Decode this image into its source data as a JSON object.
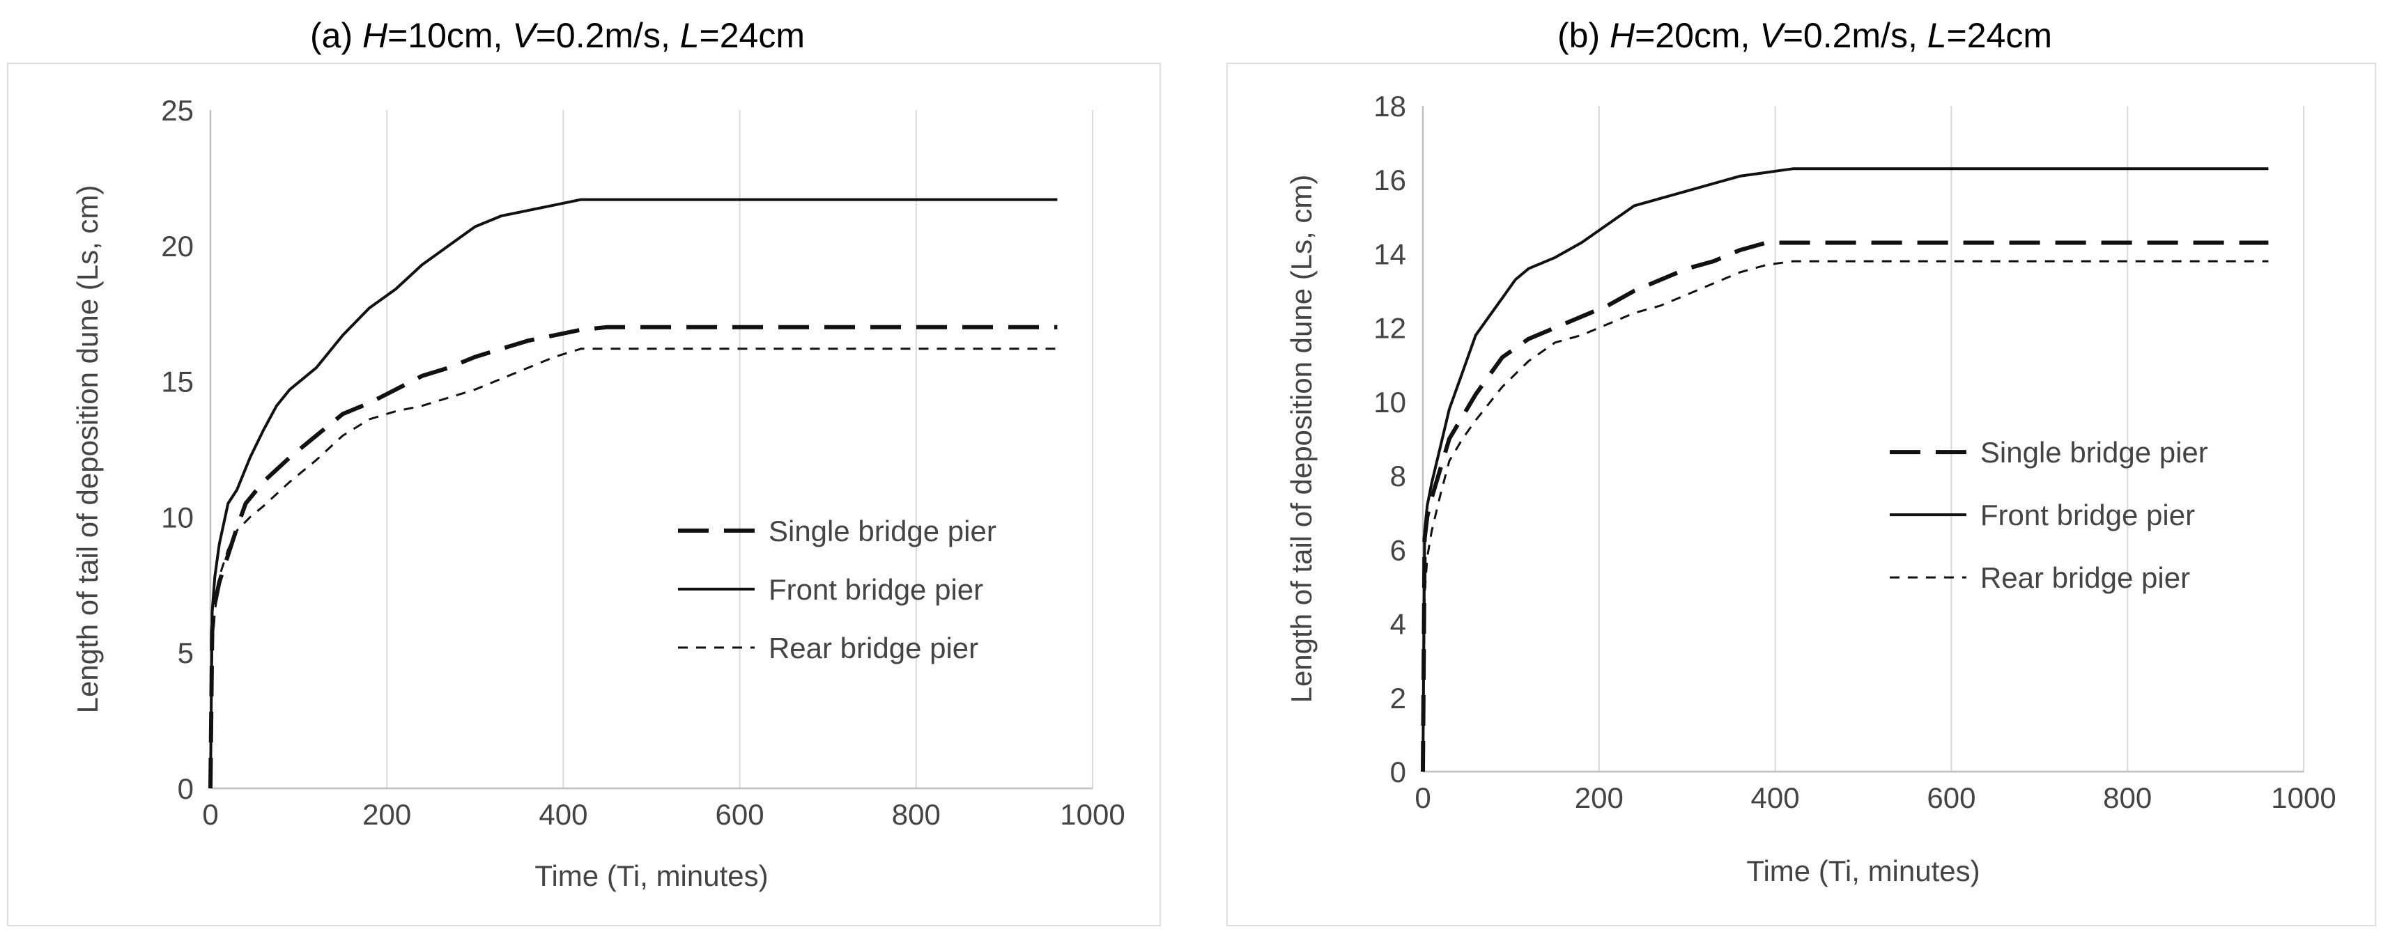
{
  "chart_data": [
    {
      "type": "line",
      "title_parts": {
        "prefix": "(a) ",
        "H_sym": "H",
        "H_val": "=10cm, ",
        "V_sym": "V",
        "V_val": "=0.2m/s, ",
        "L_sym": "L",
        "L_val": "=24cm"
      },
      "xlabel": "Time (Ti,  minutes)",
      "ylabel": "Length of tail of deposition dune (Ls, cm)",
      "xlim": [
        0,
        1000
      ],
      "ylim": [
        0,
        25
      ],
      "xticks": [
        0,
        200,
        400,
        600,
        800,
        1000
      ],
      "yticks": [
        0,
        5,
        10,
        15,
        20,
        25
      ],
      "grid": "vertical",
      "legend_position": "lower-right",
      "series": [
        {
          "name": "Single bridge pier",
          "style": "long-dash",
          "x": [
            0,
            2,
            5,
            10,
            20,
            30,
            40,
            60,
            90,
            120,
            150,
            180,
            210,
            240,
            270,
            300,
            330,
            360,
            390,
            420,
            450,
            600,
            800,
            960
          ],
          "y": [
            0,
            5.8,
            6.8,
            7.6,
            8.6,
            9.6,
            10.5,
            11.3,
            12.2,
            13.0,
            13.8,
            14.2,
            14.7,
            15.2,
            15.5,
            15.9,
            16.2,
            16.5,
            16.7,
            16.9,
            17.0,
            17.0,
            17.0,
            17.0
          ]
        },
        {
          "name": "Front bridge pier",
          "style": "solid",
          "x": [
            0,
            2,
            5,
            10,
            20,
            30,
            45,
            60,
            75,
            90,
            120,
            150,
            180,
            210,
            240,
            270,
            300,
            330,
            360,
            390,
            420,
            600,
            800,
            960
          ],
          "y": [
            0,
            6.5,
            7.8,
            9.0,
            10.5,
            11.0,
            12.2,
            13.2,
            14.1,
            14.7,
            15.5,
            16.7,
            17.7,
            18.4,
            19.3,
            20.0,
            20.7,
            21.1,
            21.3,
            21.5,
            21.7,
            21.7,
            21.7,
            21.7
          ]
        },
        {
          "name": "Rear bridge pier",
          "style": "short-dash",
          "x": [
            0,
            2,
            5,
            10,
            20,
            30,
            45,
            60,
            90,
            120,
            150,
            180,
            210,
            240,
            270,
            300,
            330,
            360,
            390,
            420,
            600,
            800,
            960
          ],
          "y": [
            0,
            5.2,
            6.5,
            7.8,
            8.8,
            9.5,
            10.0,
            10.4,
            11.3,
            12.1,
            13.0,
            13.6,
            13.9,
            14.1,
            14.4,
            14.7,
            15.1,
            15.5,
            15.9,
            16.2,
            16.2,
            16.2,
            16.2
          ]
        }
      ]
    },
    {
      "type": "line",
      "title_parts": {
        "prefix": "(b) ",
        "H_sym": "H",
        "H_val": "=20cm, ",
        "V_sym": "V",
        "V_val": "=0.2m/s, ",
        "L_sym": "L",
        "L_val": "=24cm"
      },
      "xlabel": "Time (Ti, minutes)",
      "ylabel": "Length of tail of deposition dune (Ls, cm)",
      "xlim": [
        0,
        1000
      ],
      "ylim": [
        0,
        18
      ],
      "xticks": [
        0,
        200,
        400,
        600,
        800,
        1000
      ],
      "yticks": [
        0,
        2,
        4,
        6,
        8,
        10,
        12,
        14,
        16,
        18
      ],
      "grid": "vertical",
      "legend_position": "lower-right",
      "series": [
        {
          "name": "Single bridge pier",
          "style": "long-dash",
          "x": [
            0,
            2,
            5,
            10,
            20,
            30,
            45,
            60,
            90,
            120,
            150,
            180,
            210,
            240,
            270,
            300,
            330,
            360,
            390,
            420,
            600,
            800,
            960
          ],
          "y": [
            0,
            6.3,
            6.9,
            7.4,
            8.2,
            9.0,
            9.6,
            10.2,
            11.2,
            11.7,
            12.0,
            12.3,
            12.6,
            13.0,
            13.3,
            13.6,
            13.8,
            14.1,
            14.3,
            14.3,
            14.3,
            14.3,
            14.3
          ]
        },
        {
          "name": "Front bridge pier",
          "style": "solid",
          "x": [
            0,
            2,
            5,
            10,
            20,
            30,
            45,
            60,
            75,
            90,
            105,
            120,
            150,
            180,
            210,
            240,
            270,
            300,
            330,
            360,
            390,
            420,
            600,
            800,
            960
          ],
          "y": [
            0,
            6.5,
            7.2,
            7.8,
            8.8,
            9.8,
            10.8,
            11.8,
            12.3,
            12.8,
            13.3,
            13.6,
            13.9,
            14.3,
            14.8,
            15.3,
            15.5,
            15.7,
            15.9,
            16.1,
            16.2,
            16.3,
            16.3,
            16.3,
            16.3
          ]
        },
        {
          "name": "Rear bridge pier",
          "style": "short-dash",
          "x": [
            0,
            2,
            5,
            10,
            20,
            30,
            45,
            60,
            90,
            120,
            150,
            180,
            210,
            240,
            270,
            300,
            330,
            360,
            390,
            420,
            600,
            800,
            960
          ],
          "y": [
            0,
            4.8,
            5.8,
            6.5,
            7.5,
            8.4,
            9.0,
            9.5,
            10.4,
            11.1,
            11.6,
            11.8,
            12.1,
            12.4,
            12.6,
            12.9,
            13.2,
            13.5,
            13.7,
            13.8,
            13.8,
            13.8,
            13.8
          ]
        }
      ]
    }
  ]
}
